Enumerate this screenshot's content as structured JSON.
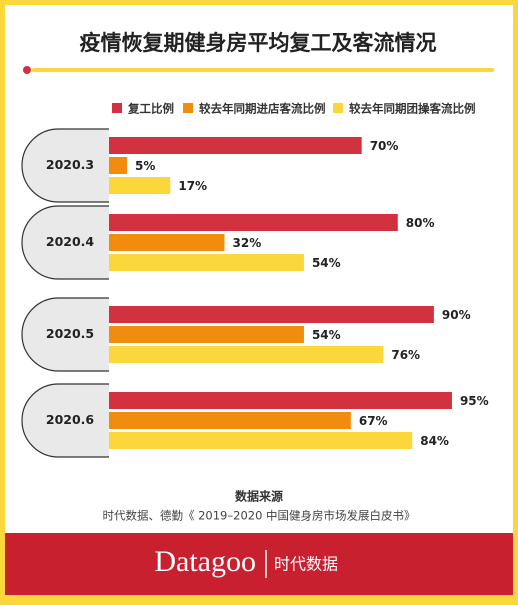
{
  "chart_data": {
    "type": "hbar",
    "title": "疫情恢复期健身房平均复工及客流情况",
    "categories": [
      "2020.3",
      "2020.4",
      "2020.5",
      "2020.6"
    ],
    "series": [
      {
        "name": "复工比例",
        "color": "#d2323f",
        "values": [
          70,
          80,
          90,
          95
        ],
        "value_labels": [
          "70%",
          "80%",
          "90%",
          "95%"
        ]
      },
      {
        "name": "较去年同期进店客流比例",
        "color": "#f28c0f",
        "values": [
          5,
          32,
          54,
          67
        ],
        "value_labels": [
          "5%",
          "32%",
          "54%",
          "67%"
        ]
      },
      {
        "name": "较去年同期团操客流比例",
        "color": "#fbd73c",
        "values": [
          17,
          54,
          76,
          84
        ],
        "value_labels": [
          "17%",
          "54%",
          "76%",
          "84%"
        ]
      }
    ],
    "source_title": "数据来源",
    "source": "时代数据、德勤《 2019–2020 中国健身房市场发展白皮书》"
  },
  "footer": {
    "brand": "Datagoo",
    "brand_cn": "时代数据"
  }
}
